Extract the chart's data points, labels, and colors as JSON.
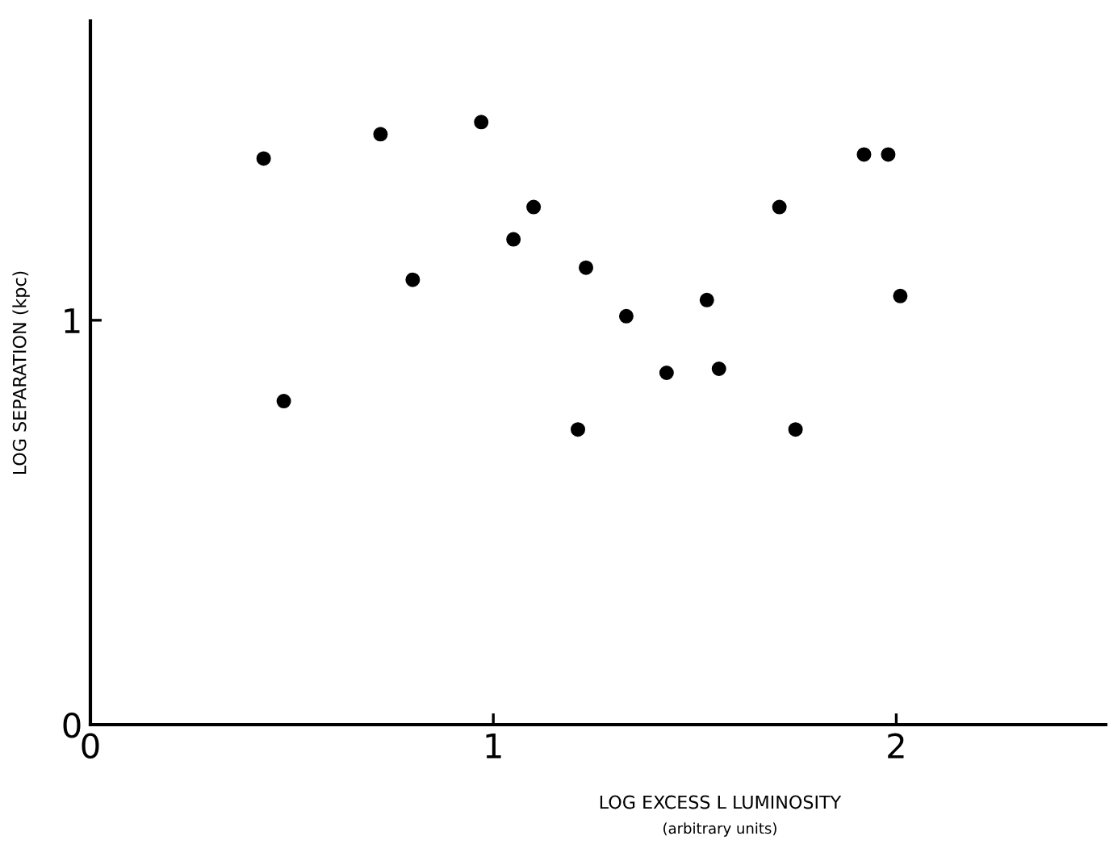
{
  "chart_data": {
    "type": "scatter",
    "xlabel": "LOG EXCESS L LUMINOSITY",
    "annotations": [
      "(arbitrary units)"
    ],
    "ylabel": "LOG SEPARATION (kpc)",
    "x": [
      0.43,
      0.48,
      0.72,
      0.8,
      0.97,
      1.05,
      1.1,
      1.23,
      1.21,
      1.33,
      1.43,
      1.53,
      1.56,
      1.71,
      1.75,
      1.92,
      1.98,
      2.01
    ],
    "values": [
      1.4,
      0.8,
      1.46,
      1.1,
      1.49,
      1.2,
      1.28,
      1.13,
      0.73,
      1.01,
      0.87,
      1.05,
      0.88,
      1.28,
      0.73,
      1.41,
      1.41,
      1.06
    ],
    "color": "#000000",
    "marker": "circle",
    "xlim": [
      0,
      2.52
    ],
    "ylim": [
      0,
      1.74
    ],
    "xticks": [
      0,
      1,
      2
    ],
    "yticks": [
      0,
      1
    ],
    "grid": false,
    "legend": false
  }
}
